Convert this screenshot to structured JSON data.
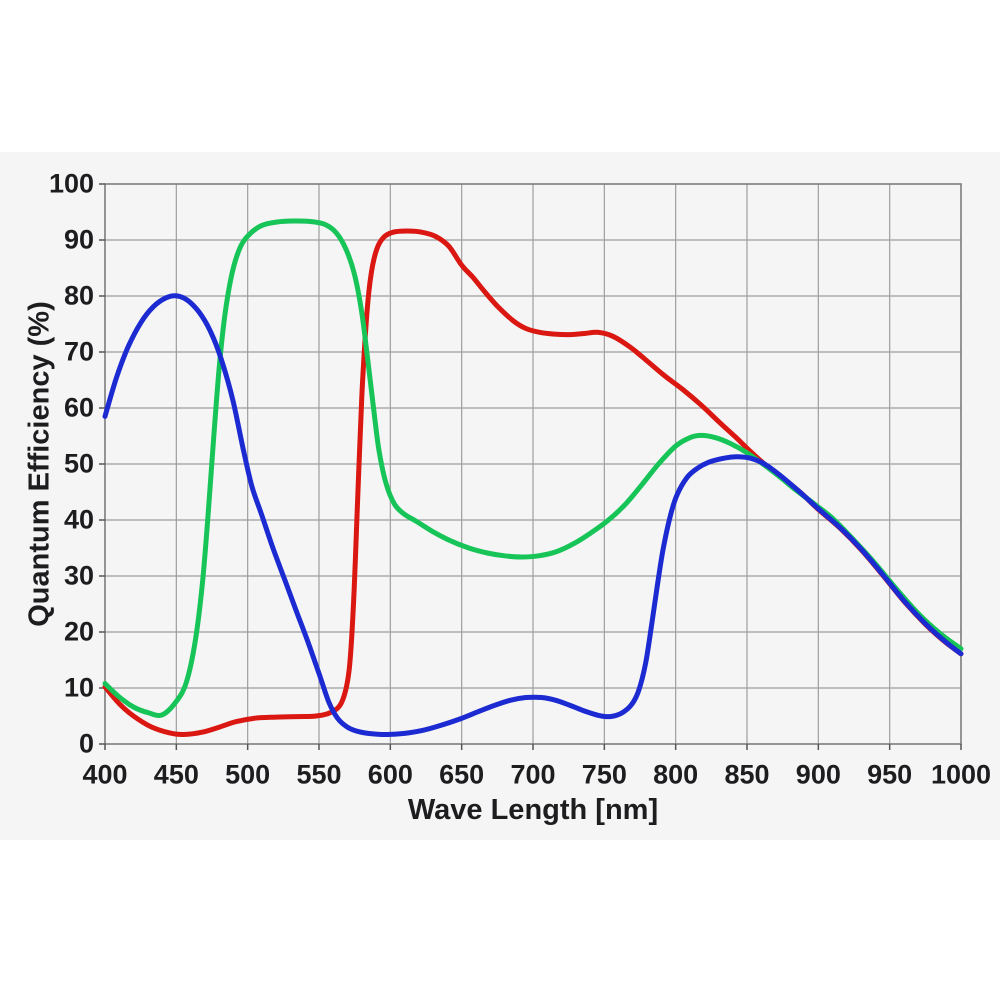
{
  "chart_data": {
    "type": "line",
    "title": "",
    "xlabel": "Wave Length [nm]",
    "ylabel": "Quantum Efficiency (%)",
    "x_range": [
      400,
      1000
    ],
    "y_range": [
      0,
      100
    ],
    "x_ticks": [
      400,
      450,
      500,
      550,
      600,
      650,
      700,
      750,
      800,
      850,
      900,
      950,
      1000
    ],
    "y_ticks": [
      0,
      10,
      20,
      30,
      40,
      50,
      60,
      70,
      80,
      90,
      100
    ],
    "grid": true,
    "legend": "none",
    "colors": {
      "panel_bg": "#f5f5f6",
      "grid": "#9e9e9e",
      "axis": "#7d7d7d",
      "tick_mark": "#555555",
      "text": "#1d1d1f"
    },
    "series": [
      {
        "name": "red-channel",
        "color": "#da1710",
        "points": [
          [
            400,
            10.2
          ],
          [
            410,
            7.2
          ],
          [
            420,
            5.0
          ],
          [
            432,
            3.1
          ],
          [
            445,
            2.0
          ],
          [
            455,
            1.7
          ],
          [
            468,
            2.1
          ],
          [
            480,
            3.0
          ],
          [
            492,
            4.0
          ],
          [
            505,
            4.6
          ],
          [
            520,
            4.8
          ],
          [
            535,
            4.9
          ],
          [
            548,
            5.0
          ],
          [
            558,
            5.6
          ],
          [
            566,
            7.5
          ],
          [
            571,
            13
          ],
          [
            574,
            24
          ],
          [
            577,
            43
          ],
          [
            580,
            62
          ],
          [
            583,
            75
          ],
          [
            586,
            83
          ],
          [
            590,
            88
          ],
          [
            595,
            90.4
          ],
          [
            602,
            91.4
          ],
          [
            612,
            91.6
          ],
          [
            622,
            91.4
          ],
          [
            632,
            90.6
          ],
          [
            641,
            88.9
          ],
          [
            650,
            85.5
          ],
          [
            658,
            83.3
          ],
          [
            666,
            80.8
          ],
          [
            675,
            78.2
          ],
          [
            686,
            75.6
          ],
          [
            695,
            74.2
          ],
          [
            705,
            73.5
          ],
          [
            715,
            73.2
          ],
          [
            726,
            73.1
          ],
          [
            736,
            73.3
          ],
          [
            746,
            73.5
          ],
          [
            756,
            72.8
          ],
          [
            768,
            70.9
          ],
          [
            780,
            68.4
          ],
          [
            792,
            65.8
          ],
          [
            805,
            63.3
          ],
          [
            818,
            60.5
          ],
          [
            830,
            57.6
          ],
          [
            842,
            54.8
          ],
          [
            853,
            52.1
          ],
          [
            864,
            49.6
          ],
          [
            876,
            47.3
          ],
          [
            888,
            44.8
          ],
          [
            900,
            41.9
          ],
          [
            915,
            38.6
          ],
          [
            930,
            34.7
          ],
          [
            945,
            30.2
          ],
          [
            960,
            25.5
          ],
          [
            975,
            21.4
          ],
          [
            988,
            18.4
          ],
          [
            1000,
            16.1
          ]
        ]
      },
      {
        "name": "green-channel",
        "color": "#17c457",
        "points": [
          [
            400,
            10.8
          ],
          [
            410,
            8.4
          ],
          [
            420,
            6.6
          ],
          [
            430,
            5.6
          ],
          [
            440,
            5.2
          ],
          [
            450,
            7.6
          ],
          [
            457,
            11
          ],
          [
            463,
            18
          ],
          [
            468,
            28
          ],
          [
            472,
            40
          ],
          [
            476,
            54
          ],
          [
            480,
            67
          ],
          [
            484,
            76.5
          ],
          [
            489,
            84
          ],
          [
            495,
            88.8
          ],
          [
            502,
            91.2
          ],
          [
            510,
            92.6
          ],
          [
            520,
            93.2
          ],
          [
            532,
            93.4
          ],
          [
            544,
            93.3
          ],
          [
            554,
            92.8
          ],
          [
            562,
            91.3
          ],
          [
            569,
            88.3
          ],
          [
            575,
            83.7
          ],
          [
            580,
            77
          ],
          [
            584,
            69
          ],
          [
            588,
            60.5
          ],
          [
            592,
            52.5
          ],
          [
            597,
            46.5
          ],
          [
            603,
            42.8
          ],
          [
            610,
            41
          ],
          [
            618,
            39.8
          ],
          [
            630,
            37.9
          ],
          [
            642,
            36.3
          ],
          [
            655,
            35.0
          ],
          [
            668,
            34.1
          ],
          [
            680,
            33.6
          ],
          [
            692,
            33.4
          ],
          [
            704,
            33.6
          ],
          [
            716,
            34.3
          ],
          [
            728,
            35.7
          ],
          [
            740,
            37.6
          ],
          [
            752,
            39.8
          ],
          [
            764,
            42.6
          ],
          [
            776,
            46.2
          ],
          [
            788,
            50.0
          ],
          [
            800,
            53.2
          ],
          [
            810,
            54.7
          ],
          [
            818,
            55.1
          ],
          [
            828,
            54.7
          ],
          [
            838,
            53.7
          ],
          [
            850,
            52.0
          ],
          [
            860,
            50.2
          ],
          [
            872,
            47.9
          ],
          [
            884,
            45.4
          ],
          [
            896,
            43.1
          ],
          [
            910,
            40.3
          ],
          [
            925,
            36.4
          ],
          [
            940,
            32.2
          ],
          [
            955,
            27.6
          ],
          [
            970,
            23.3
          ],
          [
            985,
            19.8
          ],
          [
            1000,
            17.0
          ]
        ]
      },
      {
        "name": "blue-channel",
        "color": "#1c2ad2",
        "points": [
          [
            400,
            58.5
          ],
          [
            408,
            65.4
          ],
          [
            416,
            70.8
          ],
          [
            425,
            75.2
          ],
          [
            434,
            78.1
          ],
          [
            443,
            79.7
          ],
          [
            451,
            80.0
          ],
          [
            459,
            79.0
          ],
          [
            468,
            76.4
          ],
          [
            476,
            72.5
          ],
          [
            483,
            67.5
          ],
          [
            490,
            61.0
          ],
          [
            497,
            52.5
          ],
          [
            503,
            46.0
          ],
          [
            510,
            40.8
          ],
          [
            518,
            34.8
          ],
          [
            526,
            29.3
          ],
          [
            534,
            23.8
          ],
          [
            542,
            18.4
          ],
          [
            550,
            12.6
          ],
          [
            557,
            7.4
          ],
          [
            563,
            4.6
          ],
          [
            570,
            3.0
          ],
          [
            578,
            2.2
          ],
          [
            588,
            1.8
          ],
          [
            598,
            1.7
          ],
          [
            610,
            1.9
          ],
          [
            622,
            2.4
          ],
          [
            635,
            3.3
          ],
          [
            648,
            4.4
          ],
          [
            660,
            5.6
          ],
          [
            672,
            6.8
          ],
          [
            684,
            7.8
          ],
          [
            695,
            8.3
          ],
          [
            706,
            8.3
          ],
          [
            716,
            7.8
          ],
          [
            726,
            6.9
          ],
          [
            736,
            5.9
          ],
          [
            746,
            5.1
          ],
          [
            754,
            4.9
          ],
          [
            762,
            5.5
          ],
          [
            769,
            7.0
          ],
          [
            774,
            9.5
          ],
          [
            779,
            14.5
          ],
          [
            783,
            21.0
          ],
          [
            787,
            28.0
          ],
          [
            791,
            34.5
          ],
          [
            796,
            40.5
          ],
          [
            801,
            44.5
          ],
          [
            808,
            47.6
          ],
          [
            815,
            49.2
          ],
          [
            823,
            50.3
          ],
          [
            833,
            51.0
          ],
          [
            843,
            51.3
          ],
          [
            853,
            51.0
          ],
          [
            863,
            49.9
          ],
          [
            875,
            47.6
          ],
          [
            887,
            45.0
          ],
          [
            900,
            42.0
          ],
          [
            915,
            38.7
          ],
          [
            930,
            34.8
          ],
          [
            945,
            30.3
          ],
          [
            960,
            25.6
          ],
          [
            975,
            21.5
          ],
          [
            988,
            18.5
          ],
          [
            1000,
            16.1
          ]
        ]
      }
    ]
  }
}
